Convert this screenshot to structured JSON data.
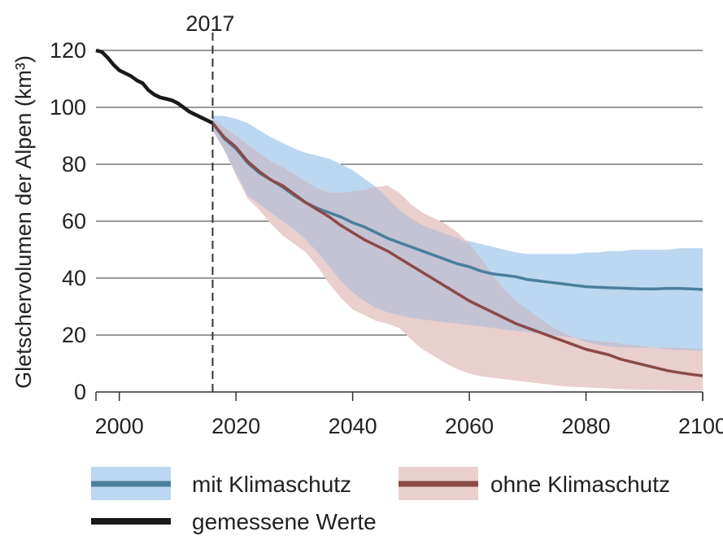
{
  "chart_data": {
    "type": "line",
    "title": "",
    "ylabel": "Gletschervolumen der Alpen  (km³)",
    "xlabel": "",
    "xlim": [
      1996,
      2100
    ],
    "ylim": [
      0,
      120
    ],
    "x_ticks": [
      2000,
      2020,
      2040,
      2060,
      2080,
      2100
    ],
    "y_ticks": [
      0,
      20,
      40,
      60,
      80,
      100,
      120
    ],
    "grid": "horizontal",
    "annotation": {
      "label": "2017",
      "x": 2016
    },
    "colors": {
      "measured": "#1a1a1a",
      "with": "#4a7f9c",
      "with_band": "#bcd7f0",
      "without": "#8a4a48",
      "without_band": "#e9cfcd",
      "overlap_band": "#c4c3d3",
      "grid": "#333333"
    },
    "series": [
      {
        "name": "gemessene Werte",
        "x": [
          1996,
          1997,
          1998,
          1999,
          2000,
          2001,
          2002,
          2003,
          2004,
          2005,
          2006,
          2007,
          2008,
          2009,
          2010,
          2011,
          2012,
          2013,
          2014,
          2015,
          2016
        ],
        "values": [
          120,
          119.5,
          117.5,
          115,
          113,
          112,
          111,
          109.5,
          108.5,
          106,
          104.5,
          103.5,
          103,
          102.5,
          101.5,
          100,
          98.5,
          97.5,
          96.5,
          95.5,
          94.5
        ]
      },
      {
        "name": "mit Klimaschutz",
        "x": [
          2016,
          2018,
          2020,
          2022,
          2024,
          2026,
          2028,
          2030,
          2032,
          2034,
          2036,
          2038,
          2040,
          2042,
          2044,
          2046,
          2048,
          2050,
          2052,
          2054,
          2056,
          2058,
          2060,
          2062,
          2064,
          2066,
          2068,
          2070,
          2072,
          2074,
          2076,
          2078,
          2080,
          2082,
          2084,
          2086,
          2088,
          2090,
          2092,
          2094,
          2096,
          2098,
          2100
        ],
        "values": [
          94.5,
          89,
          85.5,
          80.5,
          77,
          74.5,
          72,
          69,
          66.5,
          64.5,
          63,
          61.5,
          59.5,
          58,
          56,
          54,
          52.5,
          51,
          49.5,
          48,
          46.5,
          45,
          44,
          42.5,
          41.5,
          41,
          40.5,
          39.5,
          39,
          38.5,
          38,
          37.5,
          37,
          36.8,
          36.6,
          36.5,
          36.3,
          36.2,
          36.2,
          36.4,
          36.4,
          36.2,
          36
        ],
        "upper": [
          97,
          97,
          96,
          94.5,
          92,
          89.5,
          87.5,
          85.5,
          84,
          83,
          82,
          80,
          78,
          75,
          72,
          68,
          64,
          61,
          58.5,
          57,
          55.5,
          54,
          53,
          52,
          51,
          50,
          49,
          48.5,
          48.5,
          48.5,
          48.5,
          48.5,
          49,
          49,
          49.5,
          49.5,
          50,
          50,
          50,
          50,
          50.5,
          50.5,
          50.5
        ],
        "lower": [
          92,
          85,
          77,
          69,
          66,
          63,
          60,
          57,
          53.5,
          49,
          44,
          39,
          35,
          32,
          29.5,
          28,
          27,
          26,
          25.5,
          25,
          24.5,
          24,
          23.5,
          23,
          22.5,
          22,
          21.5,
          21,
          20.5,
          20,
          19.5,
          19,
          18.5,
          18,
          17.5,
          17,
          16.5,
          16,
          15.5,
          15,
          14.8,
          14.6,
          14.5
        ]
      },
      {
        "name": "ohne Klimaschutz",
        "x": [
          2016,
          2018,
          2020,
          2022,
          2024,
          2026,
          2028,
          2030,
          2032,
          2034,
          2036,
          2038,
          2040,
          2042,
          2044,
          2046,
          2048,
          2050,
          2052,
          2054,
          2056,
          2058,
          2060,
          2062,
          2064,
          2066,
          2068,
          2070,
          2072,
          2074,
          2076,
          2078,
          2080,
          2082,
          2084,
          2086,
          2088,
          2090,
          2092,
          2094,
          2096,
          2098,
          2100
        ],
        "values": [
          94.5,
          89.5,
          86,
          81,
          77.5,
          74.5,
          72.5,
          69.5,
          66.5,
          64,
          61.5,
          58.5,
          56,
          53.5,
          51.5,
          49.5,
          47,
          44.5,
          42,
          39.5,
          37,
          34.5,
          32,
          30,
          28,
          26,
          24,
          22.5,
          21,
          19.5,
          18,
          16.5,
          15,
          14,
          13,
          11.5,
          10.5,
          9.5,
          8.5,
          7.5,
          6.8,
          6.2,
          5.7
        ],
        "upper": [
          96,
          93,
          90,
          87,
          84,
          81,
          79,
          76.5,
          74,
          71.5,
          70,
          70,
          70.5,
          71,
          72,
          72.5,
          70,
          66,
          63,
          61,
          59,
          56,
          52,
          47,
          41,
          36,
          32,
          29,
          26,
          23,
          21,
          19,
          17.5,
          16.5,
          16,
          15.5,
          15.5,
          15.5,
          15.5,
          15.5,
          15.5,
          15.2,
          15
        ],
        "lower": [
          92,
          85,
          76,
          68,
          64,
          59,
          55,
          52,
          49,
          44,
          38,
          33,
          29,
          27,
          25,
          24,
          22.5,
          18.5,
          15,
          12.5,
          10,
          8,
          6.5,
          5.5,
          5,
          4.5,
          4,
          3.5,
          3,
          2.5,
          2,
          1.8,
          1.6,
          1.4,
          1.2,
          1,
          0.9,
          0.8,
          0.7,
          0.6,
          0.5,
          0.5,
          0.5
        ]
      }
    ],
    "legend": [
      {
        "label": "mit Klimaschutz",
        "kind": "band-line",
        "series": "with"
      },
      {
        "label": "ohne Klimaschutz",
        "kind": "band-line",
        "series": "without"
      },
      {
        "label": "gemessene Werte",
        "kind": "line",
        "series": "measured"
      }
    ]
  }
}
